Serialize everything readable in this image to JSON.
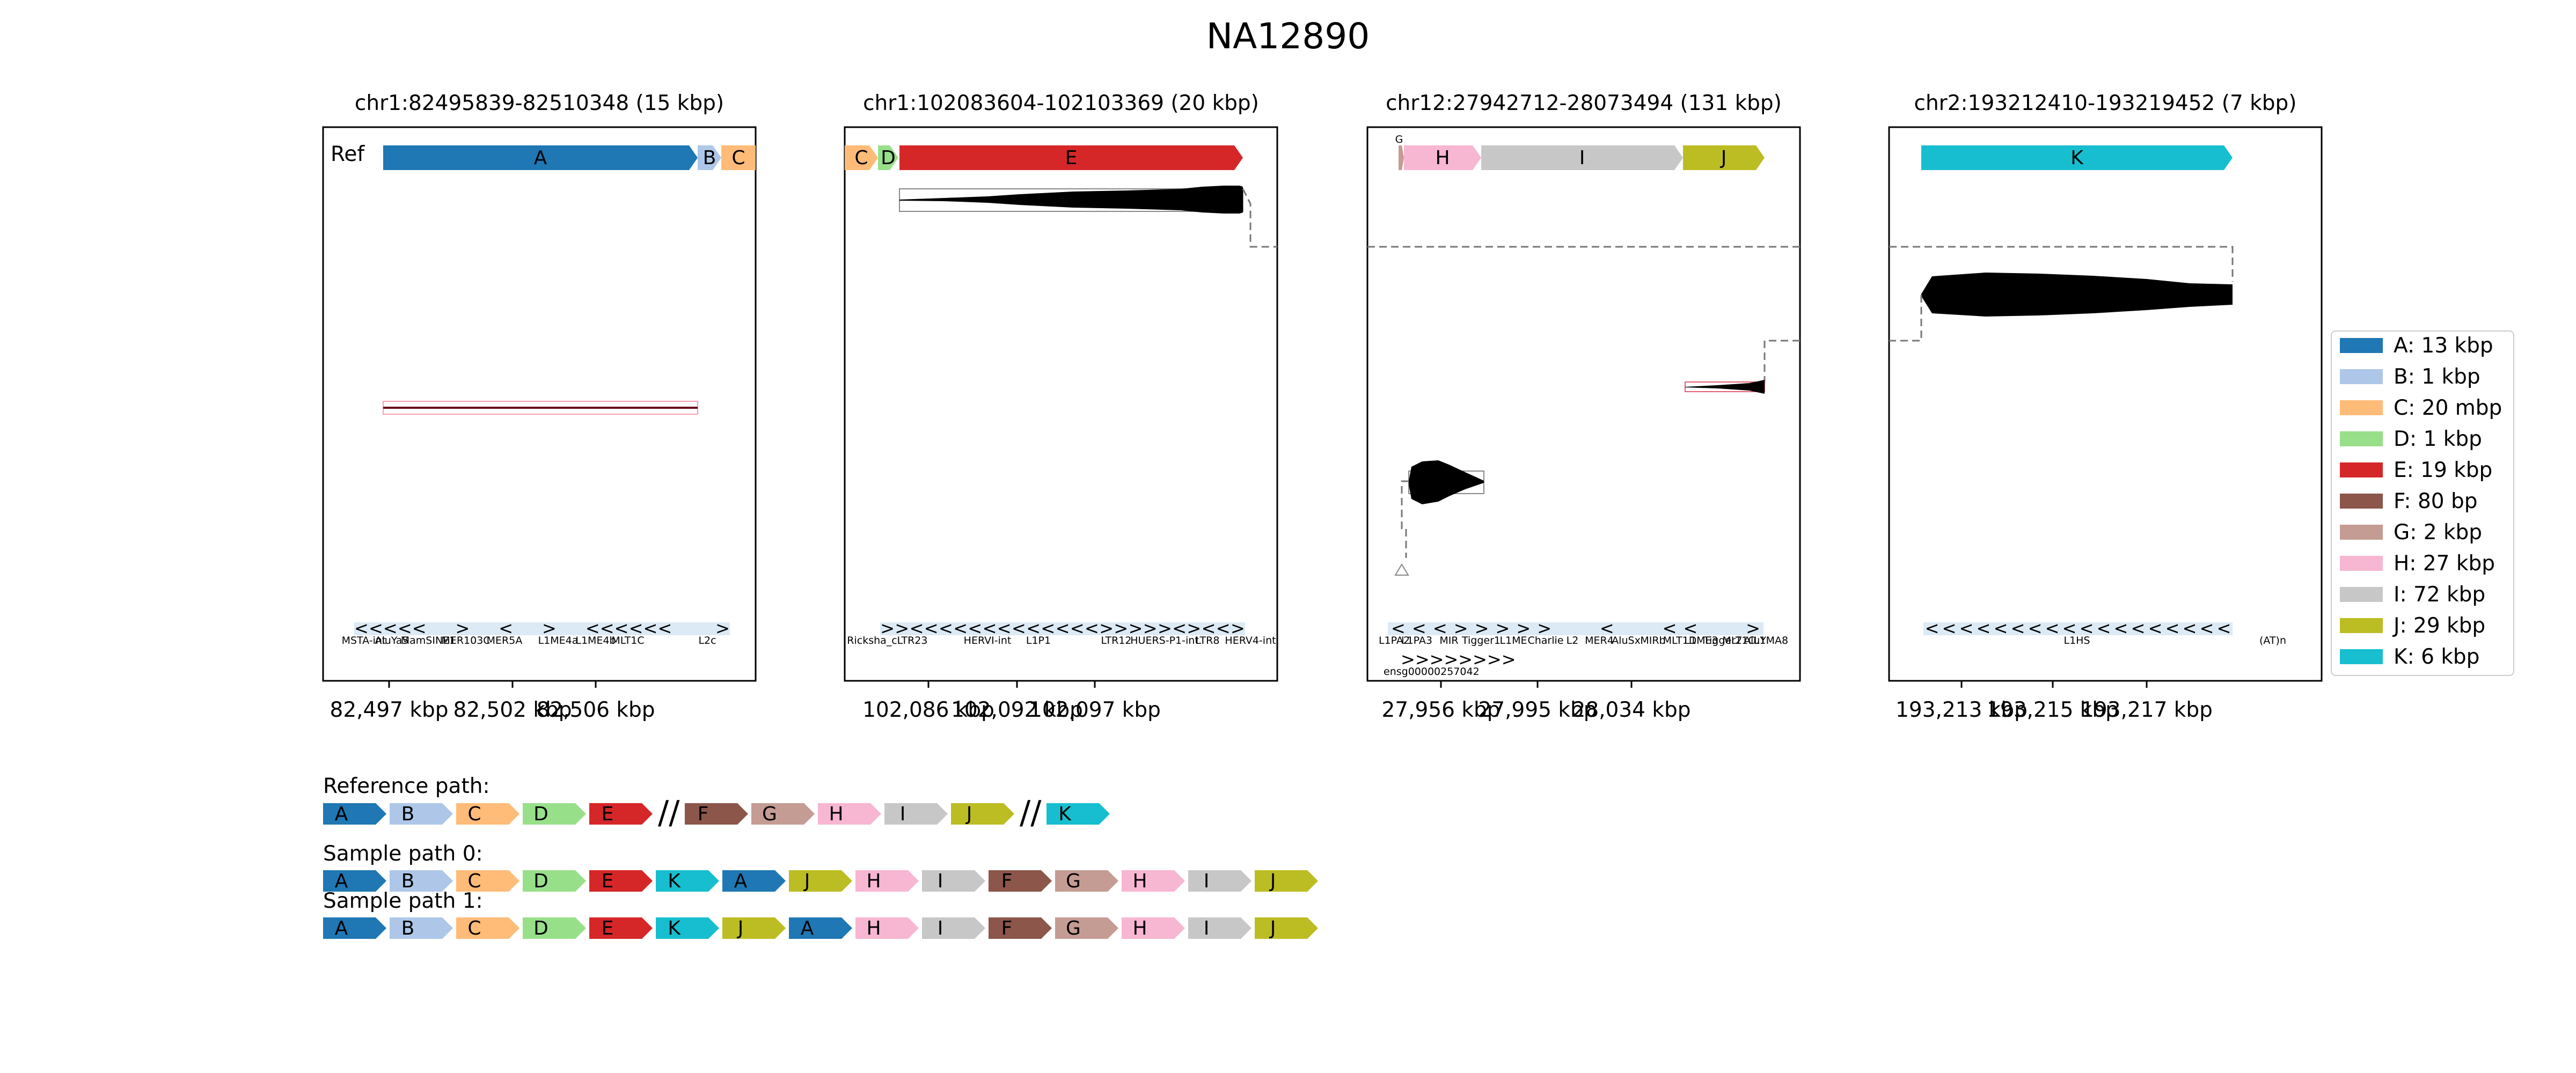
{
  "title": "NA12890",
  "ref_label": "Ref",
  "colors": {
    "A": "#1f77b4",
    "B": "#aec7e8",
    "C": "#ffbb78",
    "D": "#98df8a",
    "E": "#d62728",
    "F": "#8c564b",
    "G": "#c49c94",
    "H": "#f7b6d2",
    "I": "#c7c7c7",
    "J": "#bcbd22",
    "K": "#17becf"
  },
  "legend": [
    {
      "id": "A",
      "label": "A: 13 kbp"
    },
    {
      "id": "B",
      "label": "B: 1 kbp"
    },
    {
      "id": "C",
      "label": "C: 20 mbp"
    },
    {
      "id": "D",
      "label": "D: 1 kbp"
    },
    {
      "id": "E",
      "label": "E: 19 kbp"
    },
    {
      "id": "F",
      "label": "F: 80 bp"
    },
    {
      "id": "G",
      "label": "G: 2 kbp"
    },
    {
      "id": "H",
      "label": "H: 27 kbp"
    },
    {
      "id": "I",
      "label": "I: 72 kbp"
    },
    {
      "id": "J",
      "label": "J: 29 kbp"
    },
    {
      "id": "K",
      "label": "K: 6 kbp"
    }
  ],
  "panels": [
    {
      "title": "chr1:82495839-82510348 (15 kbp)",
      "segments": [
        "A",
        "B",
        "C"
      ],
      "ticks": [
        "82,497 kbp",
        "82,502 kbp",
        "82,506 kbp"
      ],
      "repeats": [
        "MSTA-int",
        "AluYa5",
        "MamSINE1",
        "MER103C",
        "MER5A",
        "L1ME4a",
        "L1ME4b",
        "MLT1C",
        "L2c"
      ]
    },
    {
      "title": "chr1:102083604-102103369 (20 kbp)",
      "segments": [
        "C",
        "D",
        "E"
      ],
      "ticks": [
        "102,086 kbp",
        "102,092 kbp",
        "102,097 kbp"
      ],
      "repeats": [
        "Ricksha_c",
        "LTR23",
        "HERVI-int",
        "L1P1",
        "LTR12",
        "HUERS-P1-int",
        "LTR8",
        "HERV4-int"
      ]
    },
    {
      "title": "chr12:27942712-28073494 (131 kbp)",
      "segments": [
        "G",
        "H",
        "I",
        "J"
      ],
      "small_label": "G",
      "ticks": [
        "27,956 kbp",
        "27,995 kbp",
        "28,034 kbp"
      ],
      "repeats": [
        "L1PA2",
        "L1PA3",
        "MIR",
        "Tigger1",
        "L1ME",
        "Charlie",
        "L2",
        "MER4",
        "AluSx",
        "MIRb",
        "MLT1D",
        "L1ME3",
        "Tigger2",
        "MLT1C",
        "AluY",
        "L1MA8"
      ],
      "gene_label": "ensg00000257042"
    },
    {
      "title": "chr2:193212410-193219452 (7 kbp)",
      "segments": [
        "K"
      ],
      "ticks": [
        "193,213 kbp",
        "193,215 kbp",
        "193,217 kbp"
      ],
      "repeats": [
        "L1HS",
        "(AT)n"
      ]
    }
  ],
  "paths": {
    "reference": {
      "label": "Reference path:",
      "items": [
        "A",
        "B",
        "C",
        "D",
        "E",
        "//",
        "F",
        "G",
        "H",
        "I",
        "J",
        "//",
        "K"
      ]
    },
    "sample0": {
      "label": "Sample path 0:",
      "items": [
        "A",
        "B",
        "C",
        "D",
        "E",
        "K",
        "A",
        "J",
        "H",
        "I",
        "F",
        "G",
        "H",
        "I",
        "J"
      ]
    },
    "sample1": {
      "label": "Sample path 1:",
      "items": [
        "A",
        "B",
        "C",
        "D",
        "E",
        "K",
        "J",
        "A",
        "H",
        "I",
        "F",
        "G",
        "H",
        "I",
        "J"
      ]
    }
  }
}
